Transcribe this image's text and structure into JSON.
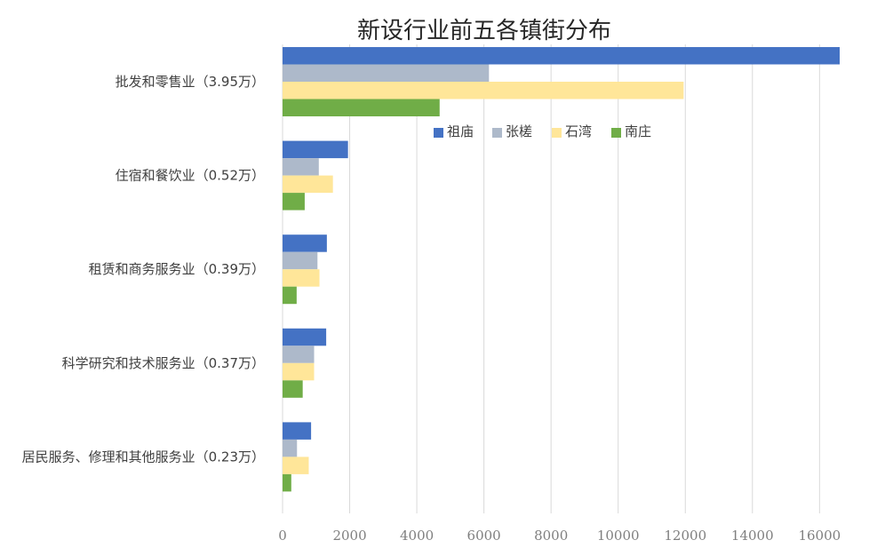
{
  "chart_data": {
    "type": "bar",
    "orientation": "horizontal",
    "title": "新设行业前五各镇街分布",
    "categories": [
      "批发和零售业（3.95万）",
      "住宿和餐饮业（0.52万）",
      "租赁和商务服务业（0.39万）",
      "科学研究和技术服务业（0.37万）",
      "居民服务、修理和其他服务业（0.23万）"
    ],
    "series": [
      {
        "name": "祖庙",
        "color": "#4472c4",
        "values": [
          16600,
          1950,
          1320,
          1300,
          850
        ]
      },
      {
        "name": "张槎",
        "color": "#adb9ca",
        "values": [
          6150,
          1080,
          1040,
          940,
          430
        ]
      },
      {
        "name": "石湾",
        "color": "#ffe699",
        "values": [
          11950,
          1500,
          1100,
          940,
          780
        ]
      },
      {
        "name": "南庄",
        "color": "#70ad47",
        "values": [
          4680,
          660,
          420,
          600,
          260
        ]
      }
    ],
    "xlim": [
      0,
      16600
    ],
    "xticks": [
      0,
      2000,
      4000,
      6000,
      8000,
      10000,
      12000,
      14000,
      16000
    ],
    "grid": true,
    "legend_position": "top-right-inside"
  }
}
